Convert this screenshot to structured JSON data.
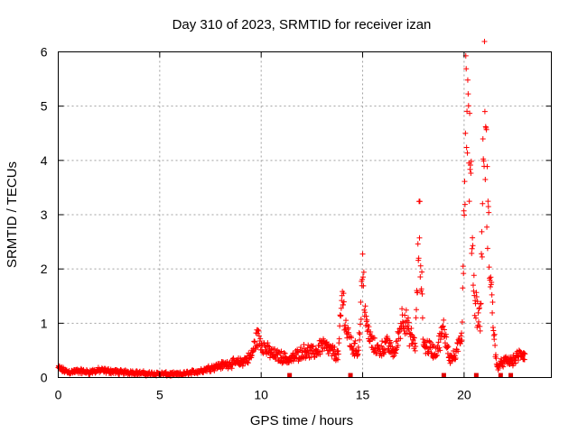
{
  "chart_data": {
    "type": "scatter",
    "title": "Day 310 of 2023, SRMTID for receiver izan",
    "xlabel": "GPS time / hours",
    "ylabel": "SRMTID / TECUs",
    "xlim": [
      0,
      24.3
    ],
    "ylim": [
      0,
      6
    ],
    "x_ticks": [
      0,
      5,
      10,
      15,
      20
    ],
    "x_tick_labels": [
      "0",
      "5",
      "10",
      "15",
      "20"
    ],
    "y_ticks": [
      0,
      1,
      2,
      3,
      4,
      5,
      6
    ],
    "y_tick_labels": [
      "0",
      "1",
      "2",
      "3",
      "4",
      "5",
      "6"
    ],
    "grid": true,
    "marker": "+",
    "color": "#ff0000",
    "series": [
      {
        "name": "SRMTID",
        "profile_x": [
          0,
          0.2,
          0.5,
          1,
          1.5,
          2,
          2.5,
          3,
          3.5,
          4,
          4.5,
          5,
          5.5,
          6,
          6.5,
          7,
          7.5,
          8,
          8.5,
          9,
          9.5,
          9.8,
          10,
          10.3,
          10.6,
          11,
          11.4,
          11.8,
          12.2,
          12.6,
          13,
          13.4,
          13.8,
          14,
          14.2,
          14.5,
          14.8,
          15,
          15.2,
          15.5,
          15.8,
          16.2,
          16.6,
          17,
          17.3,
          17.6,
          17.8,
          18,
          18.3,
          18.6,
          19,
          19.3,
          19.6,
          19.9,
          20.1,
          20.3,
          20.5,
          20.8,
          21,
          21.2,
          21.4,
          21.6,
          22,
          22.4,
          22.8,
          23
        ],
        "profile_y": [
          0.18,
          0.14,
          0.1,
          0.12,
          0.1,
          0.13,
          0.12,
          0.1,
          0.1,
          0.08,
          0.07,
          0.07,
          0.06,
          0.06,
          0.09,
          0.12,
          0.18,
          0.22,
          0.26,
          0.28,
          0.38,
          0.75,
          0.65,
          0.5,
          0.42,
          0.38,
          0.32,
          0.42,
          0.5,
          0.45,
          0.6,
          0.5,
          0.4,
          1.55,
          0.85,
          0.55,
          0.5,
          1.9,
          0.9,
          0.6,
          0.5,
          0.6,
          0.45,
          1.2,
          0.8,
          0.6,
          2.9,
          0.6,
          0.55,
          0.45,
          0.9,
          0.35,
          0.4,
          0.9,
          5.5,
          3.8,
          1.5,
          1.0,
          5.1,
          2.6,
          1.2,
          0.2,
          0.3,
          0.3,
          0.45,
          0.4
        ],
        "point_count": 1200
      }
    ],
    "gap_markers_x": [
      11.4,
      14.4,
      19.0,
      20.6,
      21.8,
      22.3
    ]
  }
}
